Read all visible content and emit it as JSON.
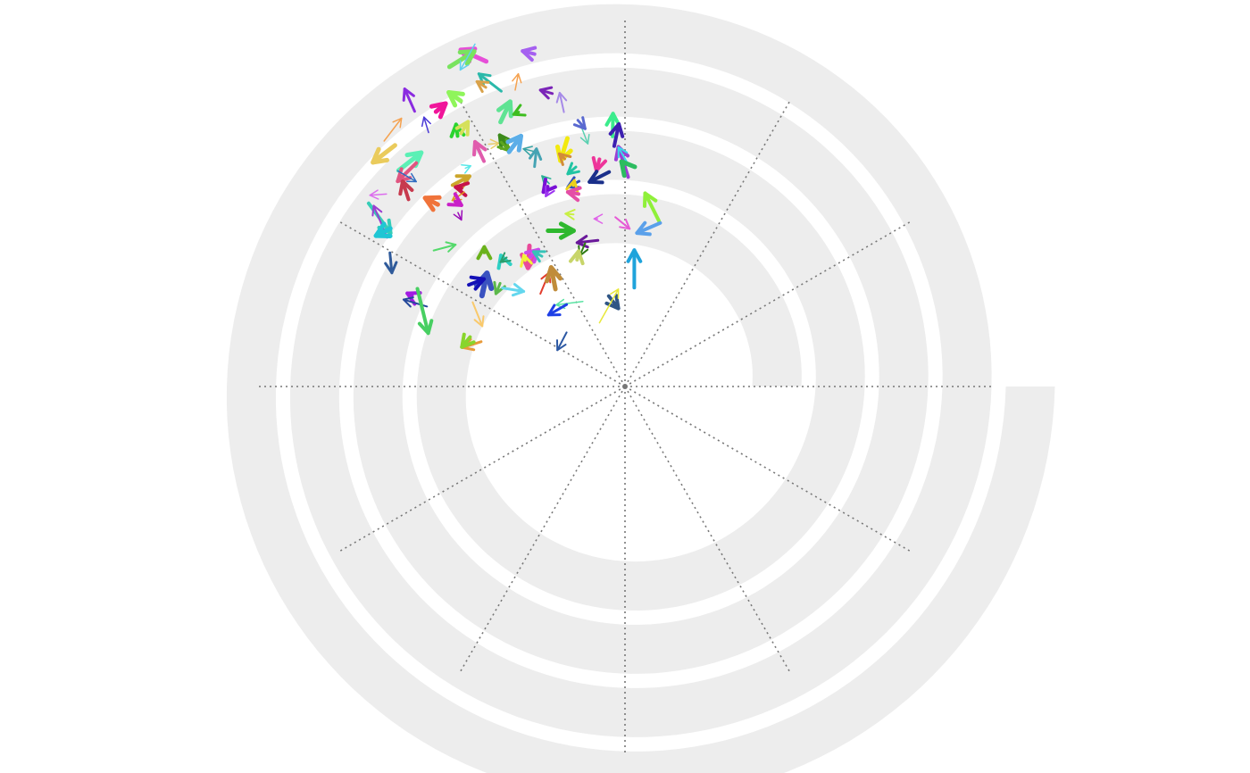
{
  "chart_data": {
    "type": "spiral-vector-field",
    "title": "",
    "track_color": "#ededed",
    "grid_color": "#777777",
    "grid_spokes": 12,
    "turns": 4,
    "note_words": [],
    "arrows": [
      {
        "x1": 0.641,
        "y1": 0.159,
        "x2": 0.575,
        "y2": 0.129,
        "color": "#e64fd8",
        "w": 5
      },
      {
        "x1": 0.546,
        "y1": 0.173,
        "x2": 0.61,
        "y2": 0.133,
        "color": "#79e35f",
        "w": 5
      },
      {
        "x1": 0.612,
        "y1": 0.114,
        "x2": 0.574,
        "y2": 0.181,
        "color": "#5fd0ef",
        "w": 1.5
      },
      {
        "x1": 0.766,
        "y1": 0.14,
        "x2": 0.735,
        "y2": 0.132,
        "color": "#a560f0",
        "w": 4
      },
      {
        "x1": 0.68,
        "y1": 0.236,
        "x2": 0.622,
        "y2": 0.191,
        "color": "#2bb9aa",
        "w": 3
      },
      {
        "x1": 0.64,
        "y1": 0.226,
        "x2": 0.617,
        "y2": 0.211,
        "color": "#d9a24a",
        "w": 3
      },
      {
        "x1": 0.716,
        "y1": 0.233,
        "x2": 0.724,
        "y2": 0.191,
        "color": "#f5a250",
        "w": 1.5
      },
      {
        "x1": 0.812,
        "y1": 0.242,
        "x2": 0.781,
        "y2": 0.233,
        "color": "#7b25b8",
        "w": 3
      },
      {
        "x1": 0.842,
        "y1": 0.29,
        "x2": 0.831,
        "y2": 0.24,
        "color": "#a68ae8",
        "w": 2
      },
      {
        "x1": 0.456,
        "y1": 0.288,
        "x2": 0.43,
        "y2": 0.23,
        "color": "#8a2be0",
        "w": 3
      },
      {
        "x1": 0.575,
        "y1": 0.261,
        "x2": 0.544,
        "y2": 0.239,
        "color": "#8ff55b",
        "w": 5
      },
      {
        "x1": 0.511,
        "y1": 0.289,
        "x2": 0.536,
        "y2": 0.268,
        "color": "#f0159a",
        "w": 5
      },
      {
        "x1": 0.377,
        "y1": 0.365,
        "x2": 0.422,
        "y2": 0.306,
        "color": "#f5a250",
        "w": 1.5
      },
      {
        "x1": 0.492,
        "y1": 0.343,
        "x2": 0.48,
        "y2": 0.303,
        "color": "#4b3ad6",
        "w": 1.5
      },
      {
        "x1": 0.678,
        "y1": 0.316,
        "x2": 0.703,
        "y2": 0.263,
        "color": "#5fe393",
        "w": 5
      },
      {
        "x1": 0.725,
        "y1": 0.29,
        "x2": 0.712,
        "y2": 0.296,
        "color": "#3dbd1f",
        "w": 3
      },
      {
        "x1": 0.405,
        "y1": 0.376,
        "x2": 0.348,
        "y2": 0.42,
        "color": "#eacb5c",
        "w": 5
      },
      {
        "x1": 0.567,
        "y1": 0.352,
        "x2": 0.563,
        "y2": 0.322,
        "color": "#2ad42f",
        "w": 4
      },
      {
        "x1": 0.576,
        "y1": 0.345,
        "x2": 0.594,
        "y2": 0.315,
        "color": "#d5e05a",
        "w": 4
      },
      {
        "x1": 0.635,
        "y1": 0.417,
        "x2": 0.612,
        "y2": 0.367,
        "color": "#e05cad",
        "w": 4
      },
      {
        "x1": 0.647,
        "y1": 0.373,
        "x2": 0.674,
        "y2": 0.371,
        "color": "#e9cc6b",
        "w": 1.5
      },
      {
        "x1": 0.7,
        "y1": 0.384,
        "x2": 0.676,
        "y2": 0.35,
        "color": "#3c8a1b",
        "w": 4
      },
      {
        "x1": 0.68,
        "y1": 0.368,
        "x2": 0.7,
        "y2": 0.39,
        "color": "#5ca61e",
        "w": 3
      },
      {
        "x1": 0.7,
        "y1": 0.393,
        "x2": 0.731,
        "y2": 0.352,
        "color": "#5caee8",
        "w": 5
      },
      {
        "x1": 0.765,
        "y1": 0.392,
        "x2": 0.737,
        "y2": 0.385,
        "color": "#35a3a3",
        "w": 1.5
      },
      {
        "x1": 0.766,
        "y1": 0.431,
        "x2": 0.771,
        "y2": 0.385,
        "color": "#45a3b3",
        "w": 3
      },
      {
        "x1": 0.414,
        "y1": 0.441,
        "x2": 0.473,
        "y2": 0.395,
        "color": "#5bf0b5",
        "w": 5
      },
      {
        "x1": 0.46,
        "y1": 0.422,
        "x2": 0.412,
        "y2": 0.469,
        "color": "#e05580",
        "w": 4
      },
      {
        "x1": 0.412,
        "y1": 0.442,
        "x2": 0.46,
        "y2": 0.47,
        "color": "#2f6cc0",
        "w": 1.5
      },
      {
        "x1": 0.44,
        "y1": 0.516,
        "x2": 0.425,
        "y2": 0.469,
        "color": "#c73a4e",
        "w": 4
      },
      {
        "x1": 0.587,
        "y1": 0.435,
        "x2": 0.601,
        "y2": 0.429,
        "color": "#5ae8e8",
        "w": 1.5
      },
      {
        "x1": 0.554,
        "y1": 0.479,
        "x2": 0.598,
        "y2": 0.456,
        "color": "#cca62b",
        "w": 4
      },
      {
        "x1": 0.577,
        "y1": 0.487,
        "x2": 0.562,
        "y2": 0.484,
        "color": "#c7134a",
        "w": 4
      },
      {
        "x1": 0.584,
        "y1": 0.497,
        "x2": 0.553,
        "y2": 0.519,
        "color": "#e09a1b",
        "w": 1.5
      },
      {
        "x1": 0.516,
        "y1": 0.529,
        "x2": 0.483,
        "y2": 0.512,
        "color": "#f0733a",
        "w": 5
      },
      {
        "x1": 0.561,
        "y1": 0.521,
        "x2": 0.577,
        "y2": 0.531,
        "color": "#c91fc7",
        "w": 4
      },
      {
        "x1": 0.568,
        "y1": 0.55,
        "x2": 0.577,
        "y2": 0.569,
        "color": "#9a0ab8",
        "w": 1.5
      },
      {
        "x1": 0.851,
        "y1": 0.358,
        "x2": 0.833,
        "y2": 0.416,
        "color": "#f2e90f",
        "w": 5
      },
      {
        "x1": 0.844,
        "y1": 0.411,
        "x2": 0.83,
        "y2": 0.398,
        "color": "#d28b3a",
        "w": 3
      },
      {
        "x1": 0.804,
        "y1": 0.475,
        "x2": 0.785,
        "y2": 0.455,
        "color": "#28b094",
        "w": 1.5
      },
      {
        "x1": 0.8,
        "y1": 0.483,
        "x2": 0.789,
        "y2": 0.497,
        "color": "#7a10d6",
        "w": 4
      },
      {
        "x1": 0.801,
        "y1": 0.497,
        "x2": 0.795,
        "y2": 0.508,
        "color": "#9d35f0",
        "w": 2
      },
      {
        "x1": 0.873,
        "y1": 0.432,
        "x2": 0.852,
        "y2": 0.45,
        "color": "#20c4a3",
        "w": 3
      },
      {
        "x1": 0.881,
        "y1": 0.469,
        "x2": 0.852,
        "y2": 0.484,
        "color": "#2c4ebc",
        "w": 3
      },
      {
        "x1": 0.866,
        "y1": 0.48,
        "x2": 0.869,
        "y2": 0.467,
        "color": "#ecd11c",
        "w": 3
      },
      {
        "x1": 0.88,
        "y1": 0.502,
        "x2": 0.852,
        "y2": 0.497,
        "color": "#e44ea6",
        "w": 4
      },
      {
        "x1": 0.934,
        "y1": 0.412,
        "x2": 0.926,
        "y2": 0.441,
        "color": "#ee359a",
        "w": 4
      },
      {
        "x1": 0.959,
        "y1": 0.445,
        "x2": 0.908,
        "y2": 0.471,
        "color": "#1a2f8a",
        "w": 4
      },
      {
        "x1": 0.968,
        "y1": 0.353,
        "x2": 0.969,
        "y2": 0.294,
        "color": "#3bec8c",
        "w": 4
      },
      {
        "x1": 0.972,
        "y1": 0.378,
        "x2": 0.984,
        "y2": 0.321,
        "color": "#3d20b0",
        "w": 4
      },
      {
        "x1": 1.008,
        "y1": 0.458,
        "x2": 0.983,
        "y2": 0.38,
        "color": "#9b3ed5",
        "w": 4
      },
      {
        "x1": 1.008,
        "y1": 0.425,
        "x2": 0.983,
        "y2": 0.381,
        "color": "#37d7ea",
        "w": 2
      },
      {
        "x1": 0.996,
        "y1": 0.424,
        "x2": 0.991,
        "y2": 0.418,
        "color": "#2cbc60",
        "w": 5
      },
      {
        "x1": 0.884,
        "y1": 0.32,
        "x2": 0.904,
        "y2": 0.372,
        "color": "#5ad0b1",
        "w": 1.5
      },
      {
        "x1": 0.878,
        "y1": 0.311,
        "x2": 0.897,
        "y2": 0.333,
        "color": "#5a69d0",
        "w": 3
      },
      {
        "x1": 0.383,
        "y1": 0.502,
        "x2": 0.34,
        "y2": 0.505,
        "color": "#dc6ded",
        "w": 1.5
      },
      {
        "x1": 0.337,
        "y1": 0.526,
        "x2": 0.394,
        "y2": 0.603,
        "color": "#36cdb7",
        "w": 4
      },
      {
        "x1": 0.385,
        "y1": 0.615,
        "x2": 0.35,
        "y2": 0.532,
        "color": "#9b3dd0",
        "w": 2
      },
      {
        "x1": 0.393,
        "y1": 0.591,
        "x2": 0.356,
        "y2": 0.61,
        "color": "#1fc6d4",
        "w": 5
      },
      {
        "x1": 0.867,
        "y1": 0.555,
        "x2": 0.846,
        "y2": 0.553,
        "color": "#c9f044",
        "w": 2
      },
      {
        "x1": 0.929,
        "y1": 0.566,
        "x2": 0.92,
        "y2": 0.566,
        "color": "#df62e8",
        "w": 1.5
      },
      {
        "x1": 0.975,
        "y1": 0.562,
        "x2": 1.012,
        "y2": 0.592,
        "color": "#e65ad6",
        "w": 2
      },
      {
        "x1": 1.088,
        "y1": 0.572,
        "x2": 1.052,
        "y2": 0.5,
        "color": "#8ff03a",
        "w": 4
      },
      {
        "x1": 1.091,
        "y1": 0.577,
        "x2": 1.031,
        "y2": 0.603,
        "color": "#5aa0ea",
        "w": 4
      },
      {
        "x1": 0.801,
        "y1": 0.597,
        "x2": 0.867,
        "y2": 0.597,
        "color": "#2eb82e",
        "w": 5
      },
      {
        "x1": 0.93,
        "y1": 0.622,
        "x2": 0.876,
        "y2": 0.628,
        "color": "#6a199a",
        "w": 3
      },
      {
        "x1": 0.897,
        "y1": 0.629,
        "x2": 0.883,
        "y2": 0.662,
        "color": "#2e7a13",
        "w": 2
      },
      {
        "x1": 0.876,
        "y1": 0.672,
        "x2": 0.88,
        "y2": 0.65,
        "color": "#c8d56a",
        "w": 4
      },
      {
        "x1": 0.505,
        "y1": 0.648,
        "x2": 0.562,
        "y2": 0.633,
        "color": "#54d96b",
        "w": 2
      },
      {
        "x1": 0.636,
        "y1": 0.653,
        "x2": 0.636,
        "y2": 0.639,
        "color": "#6ab21b",
        "w": 4
      },
      {
        "x1": 0.684,
        "y1": 0.676,
        "x2": 0.679,
        "y2": 0.661,
        "color": "#2ed0c4",
        "w": 4
      },
      {
        "x1": 0.694,
        "y1": 0.666,
        "x2": 0.678,
        "y2": 0.678,
        "color": "#2a9e6c",
        "w": 2
      },
      {
        "x1": 0.753,
        "y1": 0.636,
        "x2": 0.749,
        "y2": 0.693,
        "color": "#e94a9a",
        "w": 5
      },
      {
        "x1": 0.742,
        "y1": 0.674,
        "x2": 0.738,
        "y2": 0.66,
        "color": "#f2f237",
        "w": 3
      },
      {
        "x1": 0.755,
        "y1": 0.665,
        "x2": 0.776,
        "y2": 0.646,
        "color": "#cc48ec",
        "w": 4
      },
      {
        "x1": 0.785,
        "y1": 0.663,
        "x2": 0.763,
        "y2": 0.651,
        "color": "#36c4b8",
        "w": 3
      },
      {
        "x1": 0.392,
        "y1": 0.654,
        "x2": 0.397,
        "y2": 0.706,
        "color": "#2f5a9a",
        "w": 3
      },
      {
        "x1": 0.449,
        "y1": 0.765,
        "x2": 0.437,
        "y2": 0.759,
        "color": "#a21be3",
        "w": 4
      },
      {
        "x1": 0.488,
        "y1": 0.793,
        "x2": 0.427,
        "y2": 0.775,
        "color": "#24489a",
        "w": 2
      },
      {
        "x1": 0.463,
        "y1": 0.747,
        "x2": 0.491,
        "y2": 0.862,
        "color": "#48cf62",
        "w": 4
      },
      {
        "x1": 0.63,
        "y1": 0.765,
        "x2": 0.643,
        "y2": 0.707,
        "color": "#3a52c0",
        "w": 6
      },
      {
        "x1": 0.596,
        "y1": 0.737,
        "x2": 0.635,
        "y2": 0.722,
        "color": "#1410b6",
        "w": 4
      },
      {
        "x1": 0.677,
        "y1": 0.733,
        "x2": 0.666,
        "y2": 0.76,
        "color": "#5cb84a",
        "w": 3
      },
      {
        "x1": 0.683,
        "y1": 0.745,
        "x2": 0.738,
        "y2": 0.754,
        "color": "#64d7ee",
        "w": 3
      },
      {
        "x1": 0.606,
        "y1": 0.782,
        "x2": 0.631,
        "y2": 0.844,
        "color": "#f9c96b",
        "w": 2
      },
      {
        "x1": 0.781,
        "y1": 0.76,
        "x2": 0.804,
        "y2": 0.705,
        "color": "#e23c2c",
        "w": 2
      },
      {
        "x1": 0.82,
        "y1": 0.748,
        "x2": 0.809,
        "y2": 0.692,
        "color": "#c08c3a",
        "w": 5
      },
      {
        "x1": 0.891,
        "y1": 0.78,
        "x2": 0.822,
        "y2": 0.789,
        "color": "#5ae3a3",
        "w": 1.5
      },
      {
        "x1": 0.849,
        "y1": 0.788,
        "x2": 0.802,
        "y2": 0.815,
        "color": "#1e3fe6",
        "w": 3
      },
      {
        "x1": 1.024,
        "y1": 0.744,
        "x2": 1.024,
        "y2": 0.647,
        "color": "#1fa3db",
        "w": 4
      },
      {
        "x1": 0.958,
        "y1": 0.766,
        "x2": 0.983,
        "y2": 0.798,
        "color": "#2f5585",
        "w": 4
      },
      {
        "x1": 0.934,
        "y1": 0.835,
        "x2": 0.983,
        "y2": 0.748,
        "color": "#e8e83a",
        "w": 1.5
      },
      {
        "x1": 0.849,
        "y1": 0.86,
        "x2": 0.825,
        "y2": 0.906,
        "color": "#2c58a3",
        "w": 2
      },
      {
        "x1": 0.628,
        "y1": 0.884,
        "x2": 0.58,
        "y2": 0.899,
        "color": "#e89a3a",
        "w": 3
      },
      {
        "x1": 0.599,
        "y1": 0.872,
        "x2": 0.578,
        "y2": 0.898,
        "color": "#88d52c",
        "w": 4
      }
    ]
  }
}
